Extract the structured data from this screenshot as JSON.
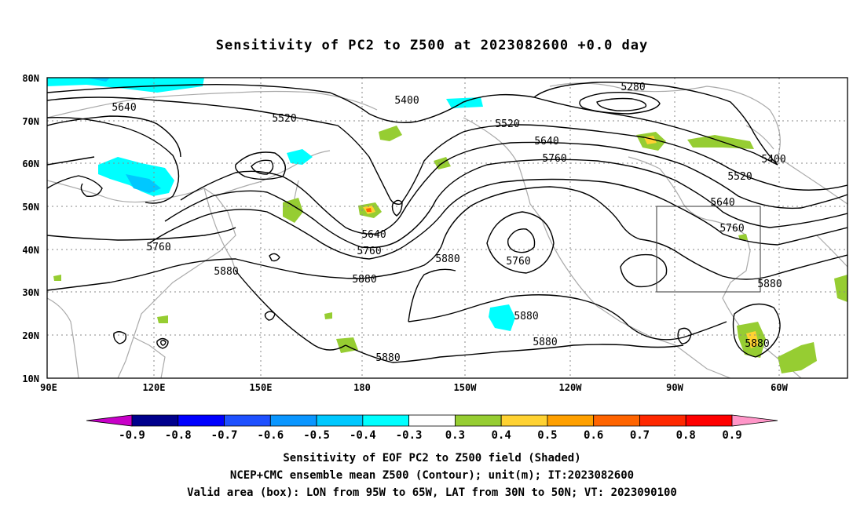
{
  "title": "Sensitivity of PC2 to Z500 at 2023082600 +0.0 day",
  "axes": {
    "lat_ticks": [
      "80N",
      "70N",
      "60N",
      "50N",
      "40N",
      "30N",
      "20N",
      "10N"
    ],
    "lon_ticks": [
      "90E",
      "120E",
      "150E",
      "180",
      "150W",
      "120W",
      "90W",
      "60W"
    ]
  },
  "contour_labels": [
    "5280",
    "5400",
    "5400",
    "5520",
    "5520",
    "5520",
    "5640",
    "5640",
    "5640",
    "5640",
    "5760",
    "5760",
    "5760",
    "5760",
    "5760",
    "5880",
    "5880",
    "5880",
    "5880",
    "5880",
    "5880",
    "5880",
    "5880"
  ],
  "colorbar": {
    "levels": [
      "-0.9",
      "-0.8",
      "-0.7",
      "-0.6",
      "-0.5",
      "-0.4",
      "-0.3",
      "0.3",
      "0.4",
      "0.5",
      "0.6",
      "0.7",
      "0.8",
      "0.9"
    ],
    "colors": [
      "#c800c8",
      "#00008c",
      "#0000ff",
      "#1e50ff",
      "#0a96ff",
      "#00c8ff",
      "#00ffff",
      "#ffffff",
      "#96cd32",
      "#ffd232",
      "#ffa000",
      "#ff6400",
      "#ff2800",
      "#ff0000",
      "#ff96c8"
    ]
  },
  "valid_box": {
    "lon": [
      -95,
      -65
    ],
    "lat": [
      30,
      50
    ]
  },
  "caption": {
    "line1": "Sensitivity of EOF PC2 to Z500 field (Shaded)",
    "line2": "NCEP+CMC ensemble mean Z500 (Contour); unit(m); IT:2023082600",
    "line3": "Valid area (box): LON from 95W to 65W, LAT from 30N to 50N; VT: 2023090100"
  }
}
